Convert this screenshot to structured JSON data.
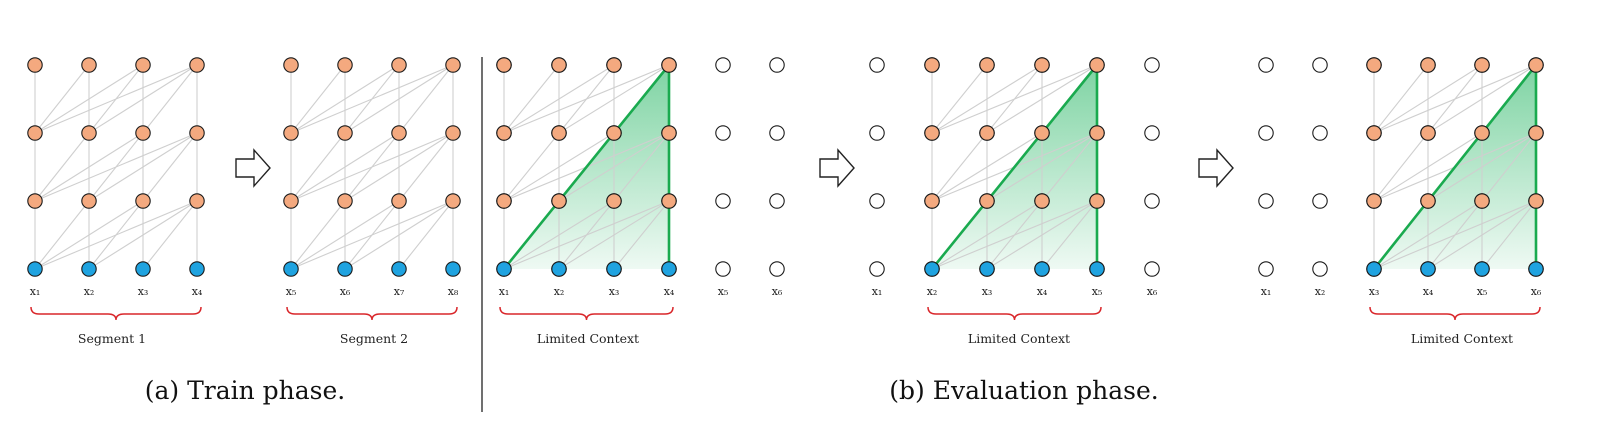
{
  "colors": {
    "hidden_node": "#f4a97f",
    "input_node": "#1fa3e0",
    "empty_node": "#ffffff",
    "edge": "#cfcfcf",
    "context_triangle": "#1aaa4f",
    "brace": "#d9262a"
  },
  "train_phase": {
    "caption": "(a) Train phase.",
    "segments": [
      {
        "label": "Segment 1",
        "tokens": [
          "x₁",
          "x₂",
          "x₃",
          "x₄"
        ]
      },
      {
        "label": "Segment 2",
        "tokens": [
          "x₅",
          "x₆",
          "x₇",
          "x₈"
        ]
      }
    ]
  },
  "eval_phase": {
    "caption": "(b) Evaluation phase.",
    "steps": [
      {
        "label": "Limited Context",
        "tokens": [
          "x₁",
          "x₂",
          "x₃",
          "x₄",
          "x₅",
          "x₆"
        ]
      },
      {
        "label": "Limited Context",
        "tokens": [
          "x₁",
          "x₂",
          "x₃",
          "x₄",
          "x₅",
          "x₆"
        ]
      },
      {
        "label": "Limited Context",
        "tokens": [
          "x₁",
          "x₂",
          "x₃",
          "x₄",
          "x₅",
          "x₆"
        ]
      }
    ]
  },
  "icons": {
    "arrow": "hollow-right-arrow-icon"
  }
}
